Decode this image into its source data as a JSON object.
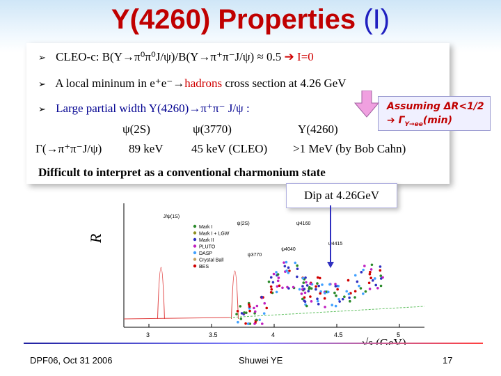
{
  "title": {
    "main": "Y(4260) Properties",
    "suffix": "(I)"
  },
  "bullets": {
    "b1": {
      "text": "CLEO-c: B(Y→π⁰π⁰J/ψ)/B(Y→π⁺π⁻J/ψ) ≈ 0.5",
      "arrow": "➔",
      "result": "I=0"
    },
    "b2": {
      "pre": "A local mininum in e⁺e⁻→",
      "hl": "hadrons",
      "post": " cross section at 4.26 GeV"
    },
    "b3": {
      "text": "Large partial width Y(4260)→π⁺π⁻ J/ψ :"
    }
  },
  "width_table": {
    "headers": [
      "ψ(2S)",
      "ψ(3770)",
      "Y(4260)"
    ],
    "row_label": "Γ(→π⁺π⁻J/ψ)",
    "values": [
      "89 keV",
      "45 keV (CLEO)",
      ">1 MeV (by Bob Cahn)"
    ]
  },
  "conclusion": "Difficult to interpret as a conventional charmonium state",
  "callout": {
    "line1": "Assuming ΔR<1/2",
    "line2": "➔ Γ",
    "sub": "Y→ee",
    "line2_post": "(min)"
  },
  "dip_label": "Dip at 4.26GeV",
  "plot": {
    "ylabel": "R",
    "xunit": "√s (GeV)",
    "x_ticks": [
      "3",
      "3.5",
      "4",
      "4.5",
      "5"
    ],
    "peak_labels": [
      "J/ψ(1S)",
      "ψ(2S)",
      "ψ3770",
      "ψ4040",
      "ψ4160",
      "ψ4415"
    ],
    "legend": [
      "Mark I",
      "Mark I + LGW",
      "Mark II",
      "PLUTO",
      "DASP",
      "Crystal Ball",
      "BES"
    ],
    "colors": {
      "mark1": "#2a8a2a",
      "mark1lgw": "#8f8f20",
      "mark2": "#3030c0",
      "pluto": "#c020c0",
      "dasp": "#40a0ff",
      "cball": "#c0a060",
      "bes": "#d00000"
    }
  },
  "footer": {
    "left": "DPF06,  Oct 31 2006",
    "center": "Shuwei YE",
    "page": "17"
  }
}
